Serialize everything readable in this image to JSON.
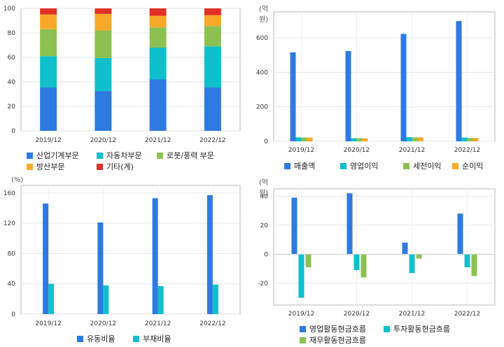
{
  "chart_data": [
    {
      "type": "bar",
      "stacked": true,
      "unit": "",
      "categories": [
        "2019/12",
        "2020/12",
        "2021/12",
        "2022/12"
      ],
      "ylim": [
        0,
        100
      ],
      "yticks": [
        0,
        20,
        40,
        60,
        80,
        100
      ],
      "grid": true,
      "legend_position": "bottom",
      "series": [
        {
          "name": "산업기계부문",
          "color": "#2e7ae0",
          "values": [
            35.5,
            32.5,
            42,
            35.5
          ]
        },
        {
          "name": "자동차부문",
          "color": "#10bfcc",
          "values": [
            25.5,
            27,
            26,
            33.5
          ]
        },
        {
          "name": "로봇/풍력 부문",
          "color": "#8cc152",
          "values": [
            22,
            22.5,
            16.5,
            16.5
          ]
        },
        {
          "name": "방산부문",
          "color": "#f8a92a",
          "values": [
            12,
            13.5,
            9.5,
            9
          ]
        },
        {
          "name": "기타(계)",
          "color": "#e03226",
          "values": [
            5,
            4.5,
            6,
            5.5
          ]
        }
      ]
    },
    {
      "type": "bar",
      "unit": "(억원)",
      "categories": [
        "2019/12",
        "2020/12",
        "2021/12",
        "2022/12"
      ],
      "ylim": [
        0,
        750
      ],
      "yticks": [
        0,
        200,
        400,
        600
      ],
      "grid": true,
      "legend_position": "bottom",
      "series": [
        {
          "name": "매출액",
          "color": "#2e7ae0",
          "values": [
            516,
            523,
            623,
            697
          ]
        },
        {
          "name": "영업이익",
          "color": "#10bfcc",
          "values": [
            23,
            18,
            24,
            22
          ]
        },
        {
          "name": "세전이익",
          "color": "#8cc152",
          "values": [
            22,
            18,
            23,
            20
          ]
        },
        {
          "name": "순이익",
          "color": "#f8a92a",
          "values": [
            22,
            17,
            23,
            19
          ]
        }
      ]
    },
    {
      "type": "bar",
      "unit": "(%)",
      "categories": [
        "2019/12",
        "2020/12",
        "2021/12",
        "2022/12"
      ],
      "ylim": [
        0,
        170
      ],
      "yticks": [
        0,
        40,
        80,
        120,
        160
      ],
      "grid": true,
      "legend_position": "bottom",
      "series": [
        {
          "name": "유동비율",
          "color": "#2e7ae0",
          "values": [
            146,
            121,
            153,
            157
          ]
        },
        {
          "name": "부채비율",
          "color": "#10bfcc",
          "values": [
            40,
            38,
            37,
            39
          ]
        }
      ]
    },
    {
      "type": "bar",
      "unit": "(억원)",
      "categories": [
        "2019/12",
        "2020/12",
        "2021/12",
        "2022/12"
      ],
      "ylim": [
        -35,
        45
      ],
      "yticks": [
        -20,
        0,
        20,
        40
      ],
      "grid": true,
      "legend_position": "bottom",
      "series": [
        {
          "name": "영업활동현금흐름",
          "color": "#2e7ae0",
          "values": [
            39,
            42,
            8,
            28
          ]
        },
        {
          "name": "투자활동현금흐름",
          "color": "#10bfcc",
          "values": [
            -30,
            -11,
            -13,
            -9
          ]
        },
        {
          "name": "재무활동현금흐름",
          "color": "#8cc152",
          "values": [
            -9,
            -16,
            -3,
            -15
          ]
        }
      ]
    }
  ]
}
